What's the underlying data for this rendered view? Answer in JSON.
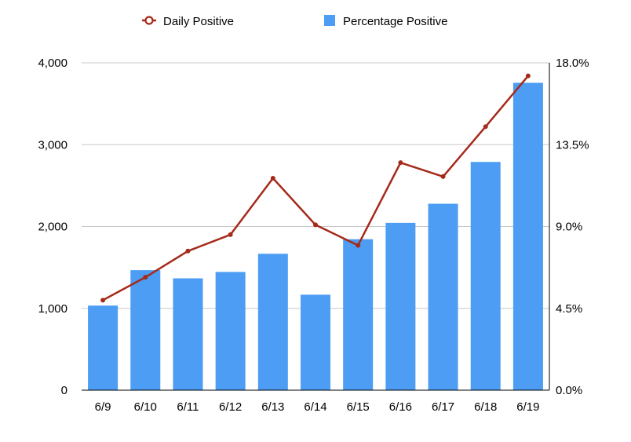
{
  "chart_data": {
    "type": "bar",
    "categories": [
      "6/9",
      "6/10",
      "6/11",
      "6/12",
      "6/13",
      "6/14",
      "6/15",
      "6/16",
      "6/17",
      "6/18",
      "6/19"
    ],
    "series": [
      {
        "name": "Daily Positive",
        "type": "line",
        "axis": "left",
        "color": "#A52A1A",
        "values": [
          1100,
          1380,
          1700,
          1900,
          2590,
          2020,
          1770,
          2780,
          2610,
          3220,
          3840
        ]
      },
      {
        "name": "Percentage Positive",
        "type": "bar",
        "axis": "right",
        "color": "#4C9DF3",
        "values": [
          4.65,
          6.6,
          6.15,
          6.5,
          7.5,
          5.25,
          8.3,
          9.2,
          10.25,
          12.55,
          16.9
        ]
      }
    ],
    "y_left": {
      "ylim": [
        0,
        4000
      ],
      "ticks": [
        0,
        1000,
        2000,
        3000,
        4000
      ],
      "tick_labels": [
        "0",
        "1,000",
        "2,000",
        "3,000",
        "4,000"
      ]
    },
    "y_right": {
      "ylim": [
        0,
        18
      ],
      "ticks": [
        0,
        4.5,
        9,
        13.5,
        18
      ],
      "tick_labels": [
        "0.0%",
        "4.5%",
        "9.0%",
        "13.5%",
        "18.0%"
      ]
    },
    "legend": {
      "position": "top-center",
      "entries": [
        "Daily Positive",
        "Percentage Positive"
      ]
    },
    "grid": true,
    "gridline_color": "#C8C8C8",
    "axis_color": "#000000"
  }
}
